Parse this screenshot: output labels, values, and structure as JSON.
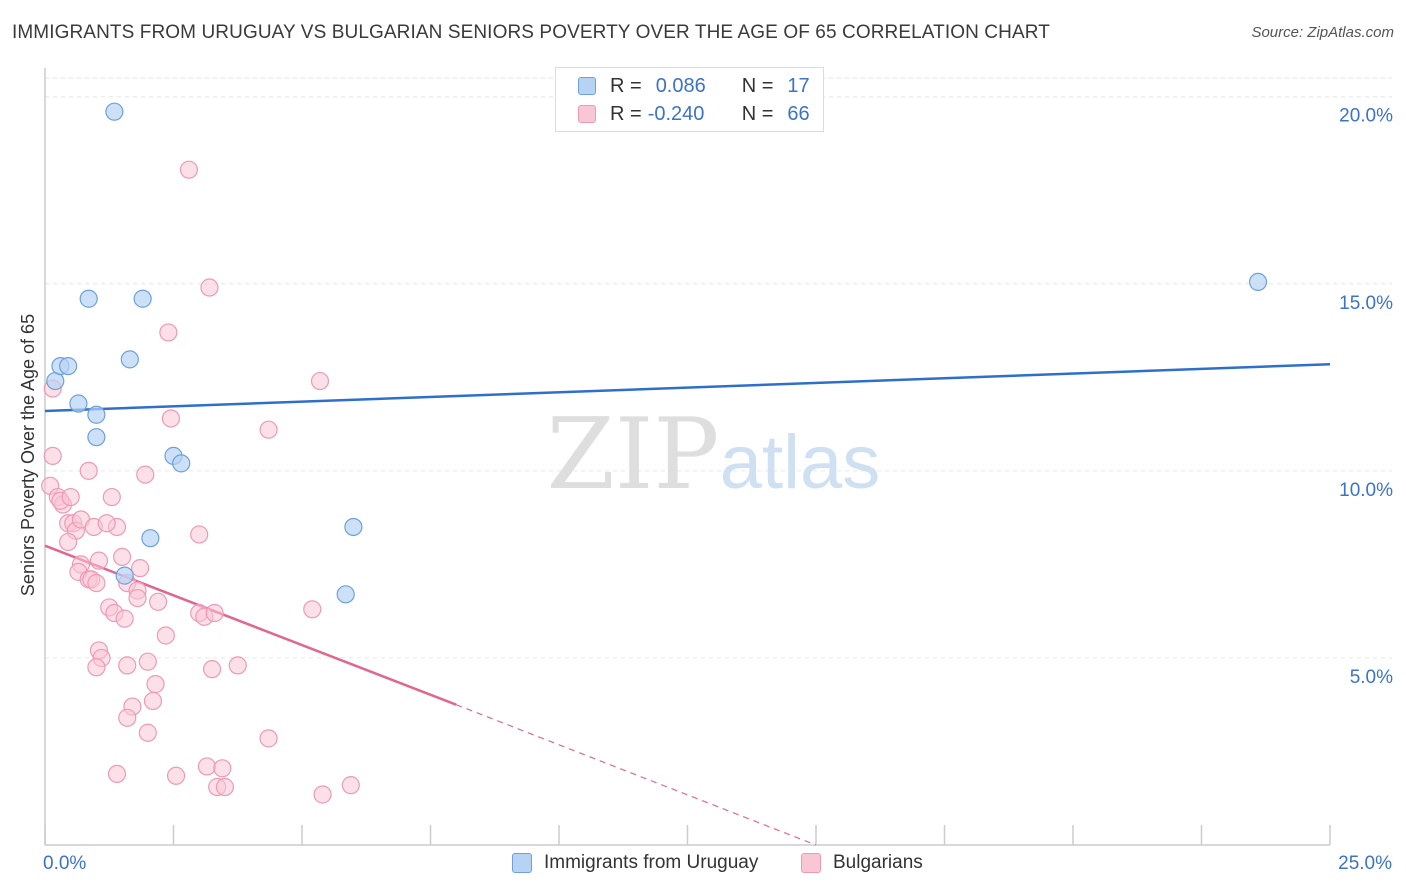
{
  "title": "IMMIGRANTS FROM URUGUAY VS BULGARIAN SENIORS POVERTY OVER THE AGE OF 65 CORRELATION CHART",
  "source": "Source: ZipAtlas.com",
  "watermark": {
    "zip": "ZIP",
    "atlas": "atlas"
  },
  "legend": {
    "rows": [
      {
        "r_label": "R =",
        "r_value": "0.086",
        "n_label": "N =",
        "n_value": "17"
      },
      {
        "r_label": "R =",
        "r_value": "-0.240",
        "n_label": "N =",
        "n_value": "66"
      }
    ]
  },
  "colors": {
    "uruguay_fill": "#b7d3f3",
    "uruguay_stroke": "#6fa0db",
    "uruguay_line": "#2f6fcc",
    "bulgarian_fill": "#f9c6d6",
    "bulgarian_stroke": "#ee9ab6",
    "bulgarian_line": "#e0678f",
    "tick_label": "#3b73c8",
    "grid": "#e6e6e6"
  },
  "chart_data": {
    "type": "scatter",
    "xlabel": "",
    "ylabel": "Seniors Poverty Over the Age of 65",
    "xlim": [
      0,
      25
    ],
    "ylim": [
      0,
      20.5
    ],
    "x_tick_labels": [
      {
        "value": 0,
        "label": "0.0%"
      },
      {
        "value": 25,
        "label": "25.0%"
      }
    ],
    "y_tick_labels": [
      {
        "value": 5,
        "label": "5.0%"
      },
      {
        "value": 10,
        "label": "10.0%"
      },
      {
        "value": 15,
        "label": "15.0%"
      },
      {
        "value": 20,
        "label": "20.0%"
      }
    ],
    "x_minor_ticks": [
      0,
      2.5,
      5,
      7.5,
      10,
      12.5,
      15,
      17.5,
      20,
      22.5,
      25
    ],
    "grid": true,
    "series": [
      {
        "name": "Immigrants from Uruguay",
        "points": [
          [
            0.2,
            12.4
          ],
          [
            0.3,
            12.8
          ],
          [
            0.45,
            12.8
          ],
          [
            0.65,
            11.8
          ],
          [
            1.0,
            11.5
          ],
          [
            1.0,
            10.9
          ],
          [
            0.85,
            14.6
          ],
          [
            1.35,
            19.6
          ],
          [
            1.9,
            14.6
          ],
          [
            1.65,
            12.98
          ],
          [
            2.5,
            10.4
          ],
          [
            2.65,
            10.2
          ],
          [
            2.05,
            8.2
          ],
          [
            1.55,
            7.2
          ],
          [
            6.0,
            8.5
          ],
          [
            5.85,
            6.7
          ],
          [
            23.6,
            15.05
          ]
        ],
        "trend": {
          "x": [
            0,
            25
          ],
          "y": [
            11.6,
            12.85
          ]
        }
      },
      {
        "name": "Bulgarians",
        "points": [
          [
            0.15,
            12.2
          ],
          [
            0.15,
            10.4
          ],
          [
            0.1,
            9.6
          ],
          [
            0.25,
            9.3
          ],
          [
            0.35,
            9.1
          ],
          [
            0.3,
            9.2
          ],
          [
            0.45,
            8.6
          ],
          [
            0.55,
            8.6
          ],
          [
            0.6,
            8.4
          ],
          [
            0.7,
            8.7
          ],
          [
            0.45,
            8.1
          ],
          [
            0.7,
            7.5
          ],
          [
            0.65,
            7.3
          ],
          [
            0.85,
            7.1
          ],
          [
            0.9,
            7.1
          ],
          [
            1.0,
            7.0
          ],
          [
            0.95,
            8.5
          ],
          [
            1.05,
            7.6
          ],
          [
            1.3,
            9.3
          ],
          [
            1.4,
            8.5
          ],
          [
            1.5,
            7.7
          ],
          [
            1.6,
            7.0
          ],
          [
            1.85,
            7.4
          ],
          [
            1.8,
            6.8
          ],
          [
            1.8,
            6.6
          ],
          [
            1.25,
            6.35
          ],
          [
            1.35,
            6.2
          ],
          [
            1.55,
            6.05
          ],
          [
            2.2,
            6.5
          ],
          [
            2.35,
            5.6
          ],
          [
            0.85,
            10.0
          ],
          [
            1.95,
            9.9
          ],
          [
            2.45,
            11.4
          ],
          [
            2.4,
            13.7
          ],
          [
            2.8,
            18.05
          ],
          [
            3.2,
            14.9
          ],
          [
            3.0,
            8.3
          ],
          [
            3.0,
            6.2
          ],
          [
            3.1,
            6.1
          ],
          [
            3.3,
            6.2
          ],
          [
            3.25,
            4.7
          ],
          [
            3.75,
            4.8
          ],
          [
            1.05,
            5.2
          ],
          [
            1.1,
            5.0
          ],
          [
            1.0,
            4.75
          ],
          [
            1.6,
            4.8
          ],
          [
            2.0,
            4.9
          ],
          [
            2.15,
            4.3
          ],
          [
            2.1,
            3.85
          ],
          [
            1.7,
            3.7
          ],
          [
            1.6,
            3.4
          ],
          [
            2.0,
            3.0
          ],
          [
            1.4,
            1.9
          ],
          [
            2.55,
            1.85
          ],
          [
            3.15,
            2.1
          ],
          [
            3.45,
            2.05
          ],
          [
            3.35,
            1.55
          ],
          [
            3.5,
            1.55
          ],
          [
            4.35,
            2.85
          ],
          [
            4.35,
            11.1
          ],
          [
            5.35,
            12.4
          ],
          [
            5.2,
            6.3
          ],
          [
            5.4,
            1.35
          ],
          [
            5.95,
            1.6
          ],
          [
            0.5,
            9.3
          ],
          [
            1.2,
            8.6
          ]
        ],
        "trend": {
          "x": [
            0,
            8
          ],
          "y": [
            8.0,
            3.75
          ]
        },
        "trend_extension": {
          "x": [
            8,
            15
          ],
          "y": [
            3.75,
            0
          ]
        }
      }
    ]
  },
  "bottom_legend": [
    "Immigrants from Uruguay",
    "Bulgarians"
  ]
}
